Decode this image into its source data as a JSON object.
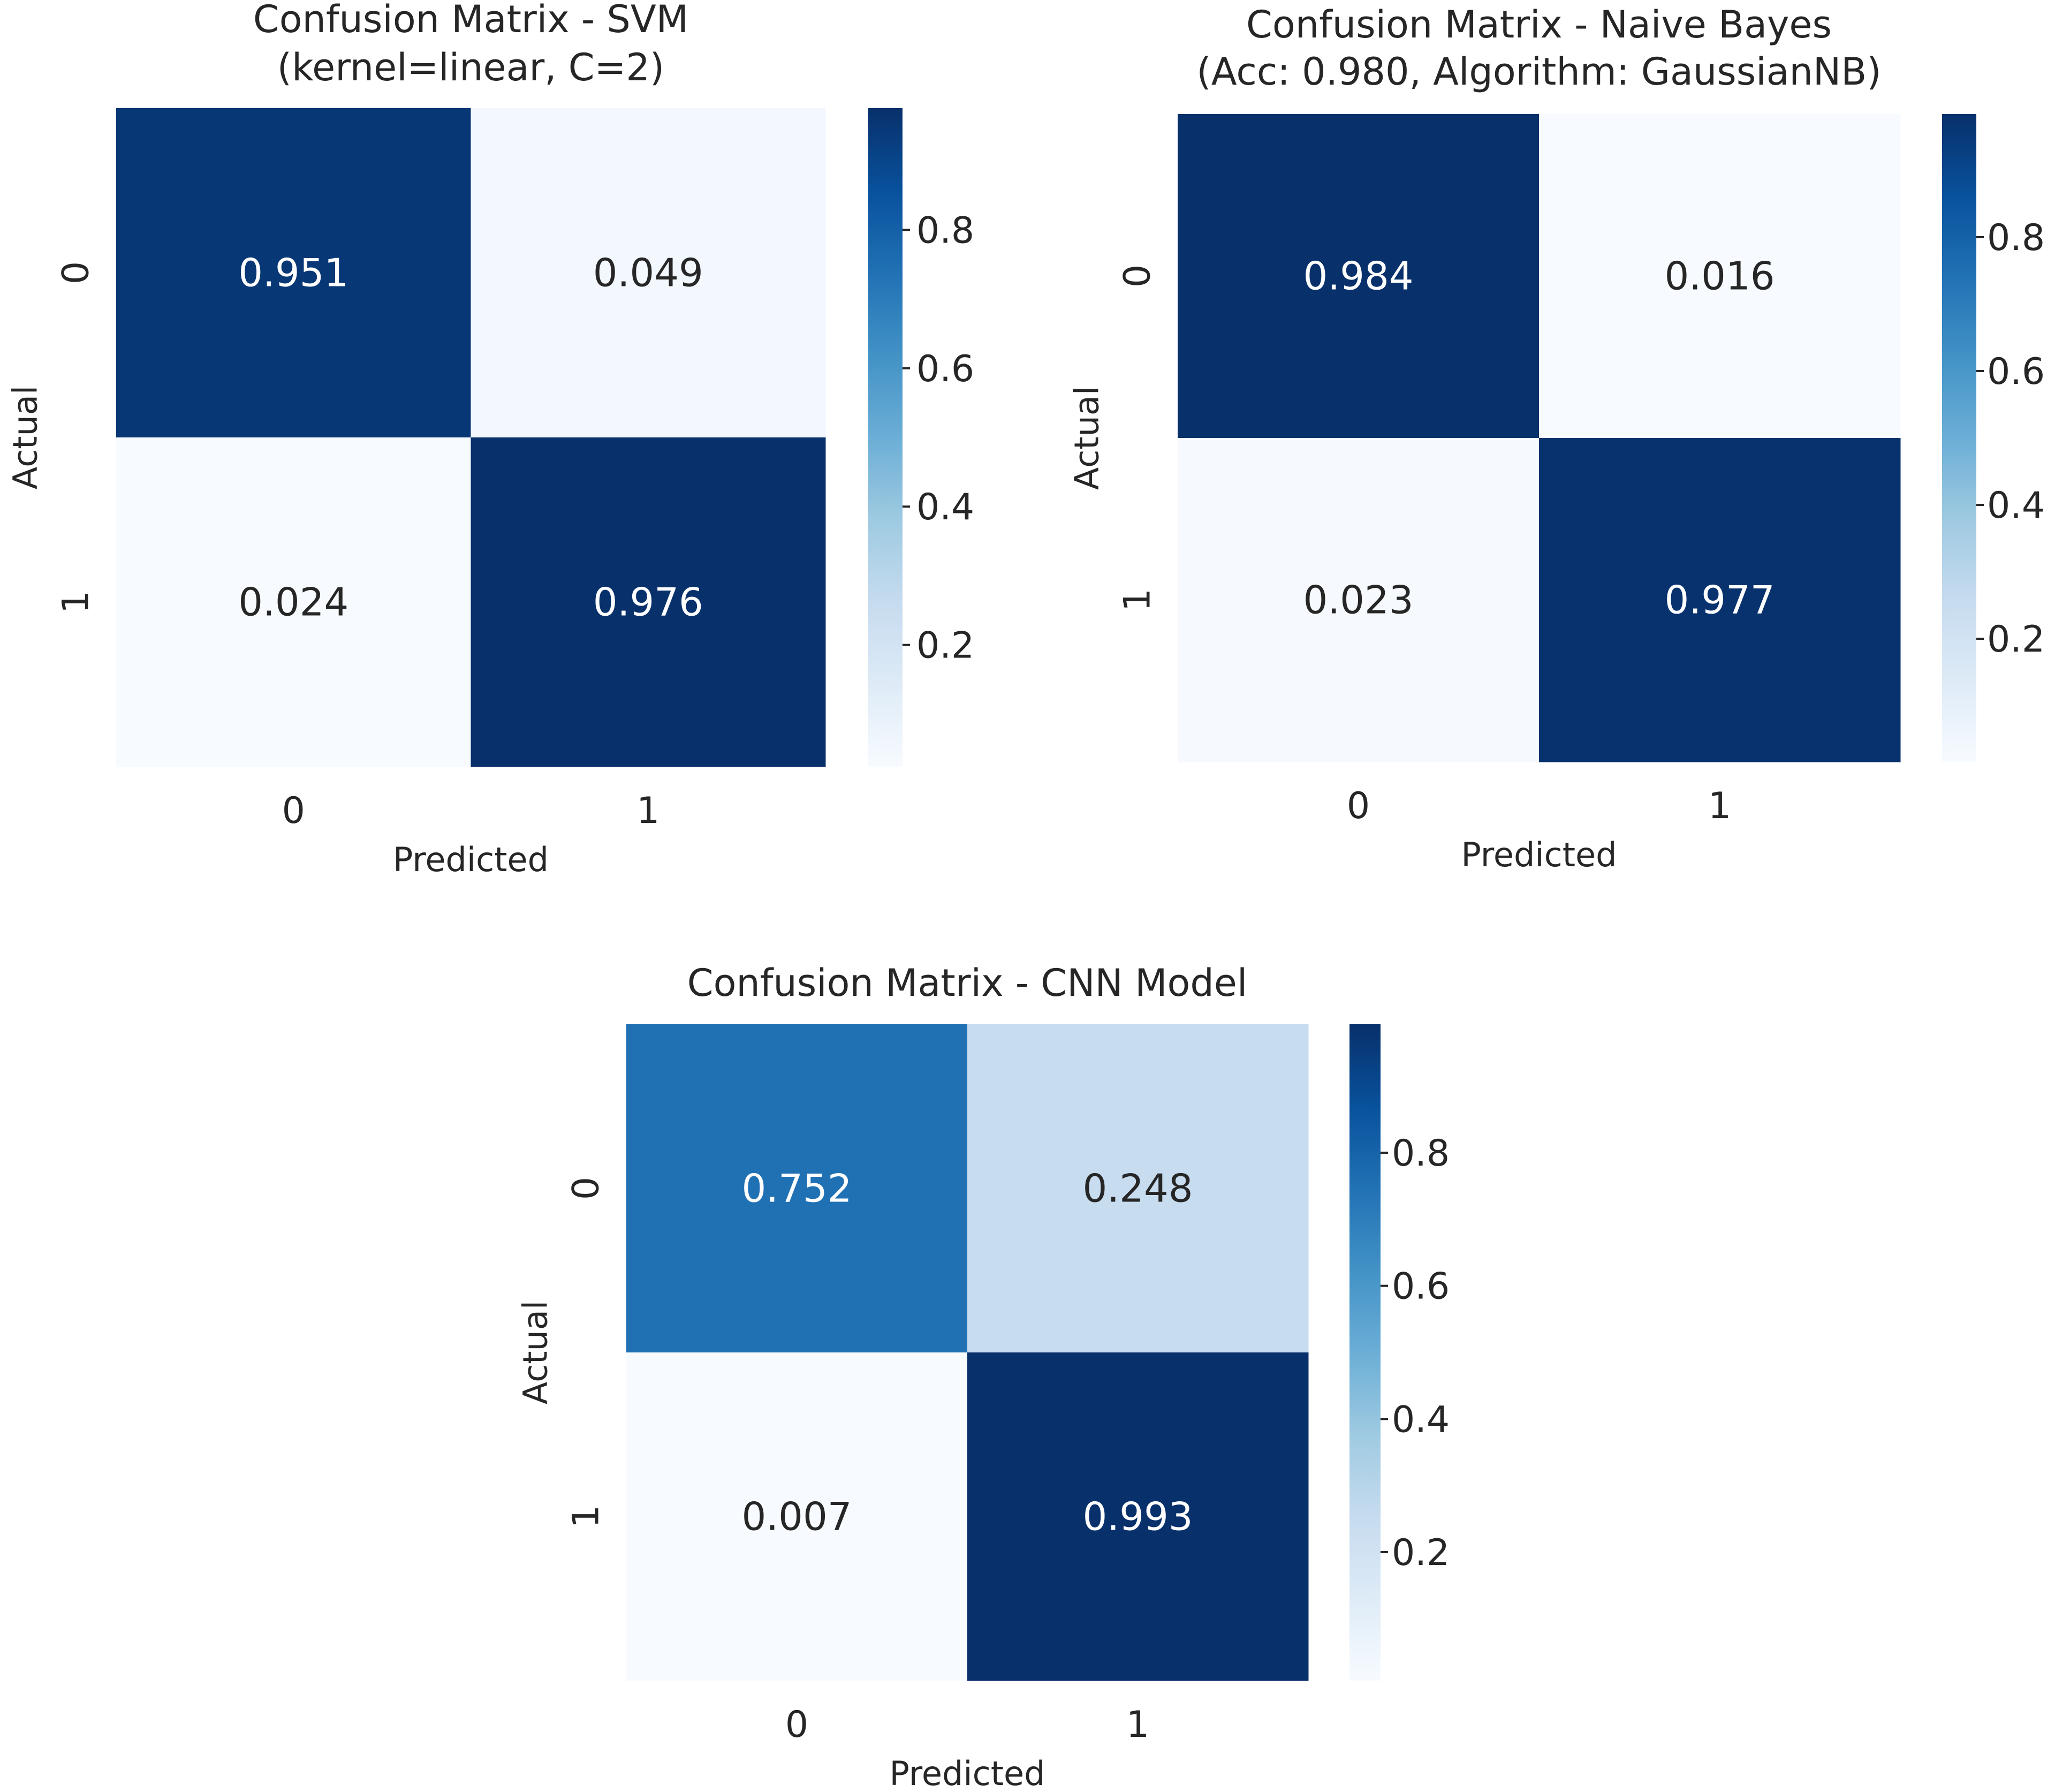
{
  "chart_data": [
    {
      "type": "heatmap",
      "title": "Confusion Matrix - SVM\n(kernel=linear, C=2)",
      "xlabel": "Predicted",
      "ylabel": "Actual",
      "x_categories": [
        "0",
        "1"
      ],
      "y_categories": [
        "0",
        "1"
      ],
      "values": [
        [
          0.951,
          0.049
        ],
        [
          0.024,
          0.976
        ]
      ],
      "value_labels": [
        [
          "0.951",
          "0.049"
        ],
        [
          "0.024",
          "0.976"
        ]
      ],
      "colorbar": {
        "ticks": [
          "0.2",
          "0.4",
          "0.6",
          "0.8"
        ],
        "tick_values": [
          0.2,
          0.4,
          0.6,
          0.8
        ],
        "range": [
          0.024,
          0.976
        ]
      }
    },
    {
      "type": "heatmap",
      "title": "Confusion Matrix - Naive Bayes\n(Acc: 0.980, Algorithm: GaussianNB)",
      "xlabel": "Predicted",
      "ylabel": "Actual",
      "x_categories": [
        "0",
        "1"
      ],
      "y_categories": [
        "0",
        "1"
      ],
      "values": [
        [
          0.984,
          0.016
        ],
        [
          0.023,
          0.977
        ]
      ],
      "value_labels": [
        [
          "0.984",
          "0.016"
        ],
        [
          "0.023",
          "0.977"
        ]
      ],
      "colorbar": {
        "ticks": [
          "0.2",
          "0.4",
          "0.6",
          "0.8"
        ],
        "tick_values": [
          0.2,
          0.4,
          0.6,
          0.8
        ],
        "range": [
          0.016,
          0.984
        ]
      }
    },
    {
      "type": "heatmap",
      "title": "Confusion Matrix - CNN Model",
      "xlabel": "Predicted",
      "ylabel": "Actual",
      "x_categories": [
        "0",
        "1"
      ],
      "y_categories": [
        "0",
        "1"
      ],
      "values": [
        [
          0.752,
          0.248
        ],
        [
          0.007,
          0.993
        ]
      ],
      "value_labels": [
        [
          "0.752",
          "0.248"
        ],
        [
          "0.007",
          "0.993"
        ]
      ],
      "colorbar": {
        "ticks": [
          "0.2",
          "0.4",
          "0.6",
          "0.8"
        ],
        "tick_values": [
          0.2,
          0.4,
          0.6,
          0.8
        ],
        "range": [
          0.007,
          0.993
        ]
      }
    }
  ],
  "colormap": {
    "name": "Blues",
    "stops": [
      "#f7fbff",
      "#deebf7",
      "#c6dbef",
      "#9ecae1",
      "#6baed6",
      "#4292c6",
      "#2171b5",
      "#08519c",
      "#08306b"
    ]
  },
  "colors": {
    "text_dark": "#262626",
    "text_light": "#ffffff",
    "tick": "#262626"
  }
}
